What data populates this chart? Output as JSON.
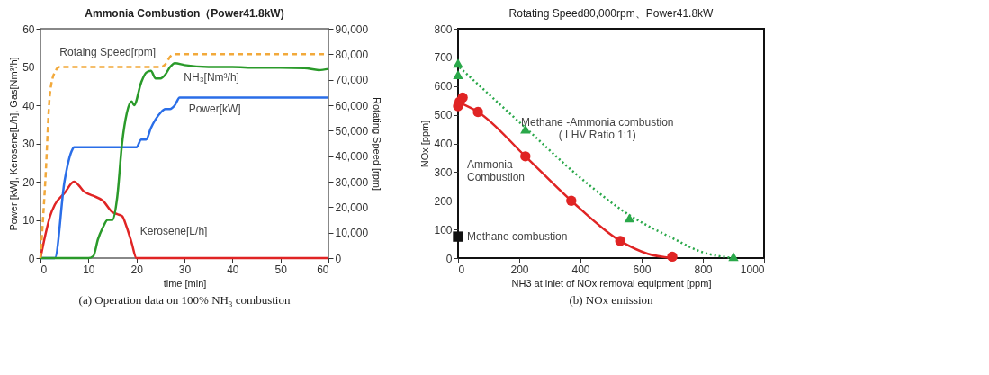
{
  "chart_data": [
    {
      "type": "line",
      "title": "Ammonia Combustion（Power41.8kW)",
      "xlabel": "time  [min]",
      "ylabel": "Power [kW], Kerosene[L/h], Gas[Nm³/h]",
      "y2label": "Rotating Speed [rpm]",
      "xlim": [
        0,
        60
      ],
      "xticks": [
        0,
        10,
        20,
        30,
        40,
        50,
        60
      ],
      "ylim": [
        0,
        60
      ],
      "yticks": [
        0,
        10,
        20,
        30,
        40,
        50,
        60
      ],
      "y2lim": [
        0,
        90000
      ],
      "y2ticks": [
        0,
        {
          "value": 10000,
          "label": "10,000"
        },
        {
          "value": 20000,
          "label": "20,000"
        },
        {
          "value": 30000,
          "label": "30,000"
        },
        {
          "value": 40000,
          "label": "40,000"
        },
        {
          "value": 50000,
          "label": "50,000"
        },
        {
          "value": 60000,
          "label": "60,000"
        },
        {
          "value": 70000,
          "label": "70,000"
        },
        {
          "value": 80000,
          "label": "80,000"
        },
        {
          "value": 90000,
          "label": "90,000"
        }
      ],
      "series": [
        {
          "name": "Kerosene[L/h]",
          "color": "#e02424",
          "line_style": "solid",
          "x": [
            0,
            1,
            2,
            3,
            5,
            7,
            8,
            9,
            10,
            11,
            13,
            15,
            16,
            17,
            18,
            19,
            20,
            60
          ],
          "values": [
            0,
            6,
            11,
            14,
            17,
            20,
            19,
            17.5,
            16.8,
            16.3,
            15,
            12,
            11.5,
            11,
            8,
            4,
            0,
            0
          ]
        },
        {
          "name": "Power[kW]",
          "color": "#2a6ee8",
          "line_style": "solid",
          "x": [
            0,
            3,
            5,
            6.5,
            7,
            20,
            21,
            22,
            23,
            25,
            26,
            27,
            28,
            29,
            60
          ],
          "values": [
            0,
            0,
            20,
            28,
            29,
            29,
            31,
            31,
            34,
            38,
            39,
            39,
            40,
            42,
            42
          ]
        },
        {
          "name": "NH₃[Nm³/h]",
          "color": "#2a9a2a",
          "line_style": "solid",
          "x": [
            0,
            10,
            11,
            12,
            13,
            14,
            15,
            16,
            17,
            18,
            19,
            19.5,
            21,
            22,
            23,
            24,
            25,
            26,
            27,
            28,
            30,
            35,
            40,
            45,
            50,
            55,
            58,
            60
          ],
          "values": [
            0,
            0,
            0.5,
            5,
            8,
            10,
            10,
            16,
            30,
            38,
            41,
            40,
            46,
            48.5,
            49,
            47,
            47,
            48,
            50,
            51,
            50.5,
            50,
            50,
            49.8,
            49.8,
            49.7,
            49.2,
            49.5
          ]
        },
        {
          "name": "Rotaing Speed[rpm]",
          "color": "#f2a93b",
          "line_style": "dashed",
          "axis": "y2",
          "x": [
            0,
            1,
            2,
            3,
            4,
            25,
            26,
            27,
            28,
            60
          ],
          "values": [
            0,
            30000,
            65000,
            73000,
            75000,
            75000,
            76000,
            79000,
            80000,
            80000
          ]
        }
      ],
      "annotations": [
        "(a) Operation data on 100% NH₃ combustion"
      ]
    },
    {
      "type": "scatter",
      "title": "Rotating Speed80,000rpm、Power41.8kW",
      "xlabel": "NH3 at inlet of NOx removal equipment  [ppm]",
      "ylabel": "NOx    [ppm]",
      "xlim": [
        0,
        1000
      ],
      "xticks": [
        0,
        200,
        400,
        600,
        800,
        1000
      ],
      "ylim": [
        0,
        800
      ],
      "yticks": [
        0,
        100,
        200,
        300,
        400,
        500,
        600,
        700,
        800
      ],
      "series": [
        {
          "name": "Ammonia\nCombustion",
          "color": "#e02424",
          "marker": "circle",
          "x": [
            0,
            5,
            15,
            65,
            220,
            370,
            530,
            700
          ],
          "values": [
            530,
            545,
            560,
            510,
            355,
            200,
            60,
            5
          ]
        },
        {
          "type": "line",
          "color": "#e02424",
          "line_style": "solid",
          "marker": "none",
          "x": [
            10,
            65,
            220,
            370,
            530,
            620,
            700
          ],
          "values": [
            540,
            510,
            355,
            200,
            60,
            15,
            0
          ]
        },
        {
          "name": "Methane -Ammonia combustion\n( LHV Ratio 1:1)",
          "color": "#2aa84a",
          "marker": "triangle",
          "x": [
            0,
            0,
            220,
            560,
            900
          ],
          "values": [
            680,
            640,
            450,
            140,
            5
          ]
        },
        {
          "type": "line",
          "color": "#2aa84a",
          "line_style": "dotted",
          "marker": "none",
          "x": [
            5,
            220,
            400,
            560,
            700,
            800,
            900
          ],
          "values": [
            665,
            455,
            280,
            150,
            70,
            20,
            0
          ]
        },
        {
          "name": "Methane combustion",
          "color": "#111111",
          "marker": "square",
          "x": [
            0
          ],
          "values": [
            75
          ]
        }
      ],
      "annotations": [
        "(b) NOx emission"
      ]
    }
  ]
}
